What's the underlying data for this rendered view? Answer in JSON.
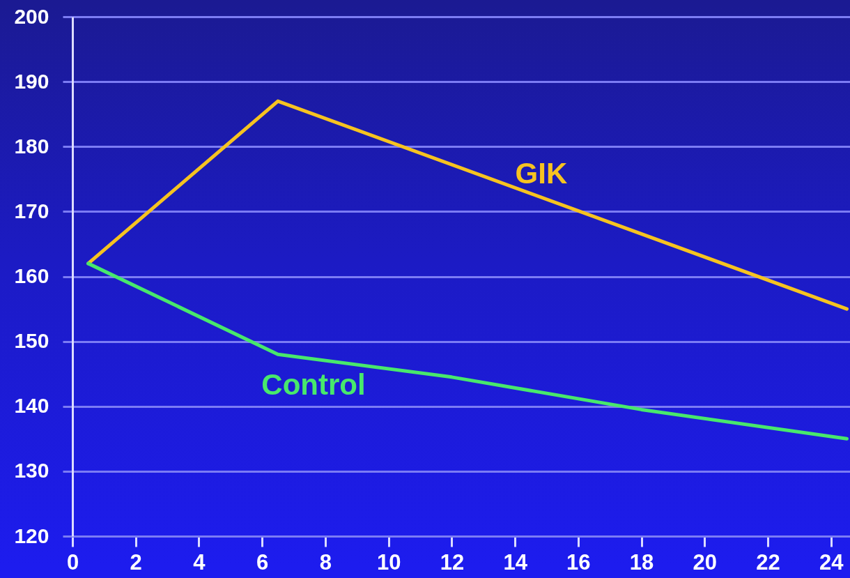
{
  "chart_data": {
    "type": "line",
    "series": [
      {
        "name": "GIK",
        "color": "#f6c320",
        "x": [
          0.5,
          6.5,
          24.5
        ],
        "values": [
          162,
          187,
          155
        ]
      },
      {
        "name": "Control",
        "color": "#48e86c",
        "x": [
          0.5,
          6.5,
          12,
          18,
          24.5
        ],
        "values": [
          162,
          148,
          144.5,
          139.5,
          135
        ]
      }
    ],
    "xlim": [
      0,
      24.6
    ],
    "xticks": [
      0,
      2,
      4,
      6,
      8,
      10,
      12,
      14,
      16,
      18,
      20,
      22,
      24
    ],
    "ylim": [
      120,
      200
    ],
    "yticks": [
      120,
      130,
      140,
      150,
      160,
      170,
      180,
      190,
      200
    ],
    "grid": "y"
  }
}
